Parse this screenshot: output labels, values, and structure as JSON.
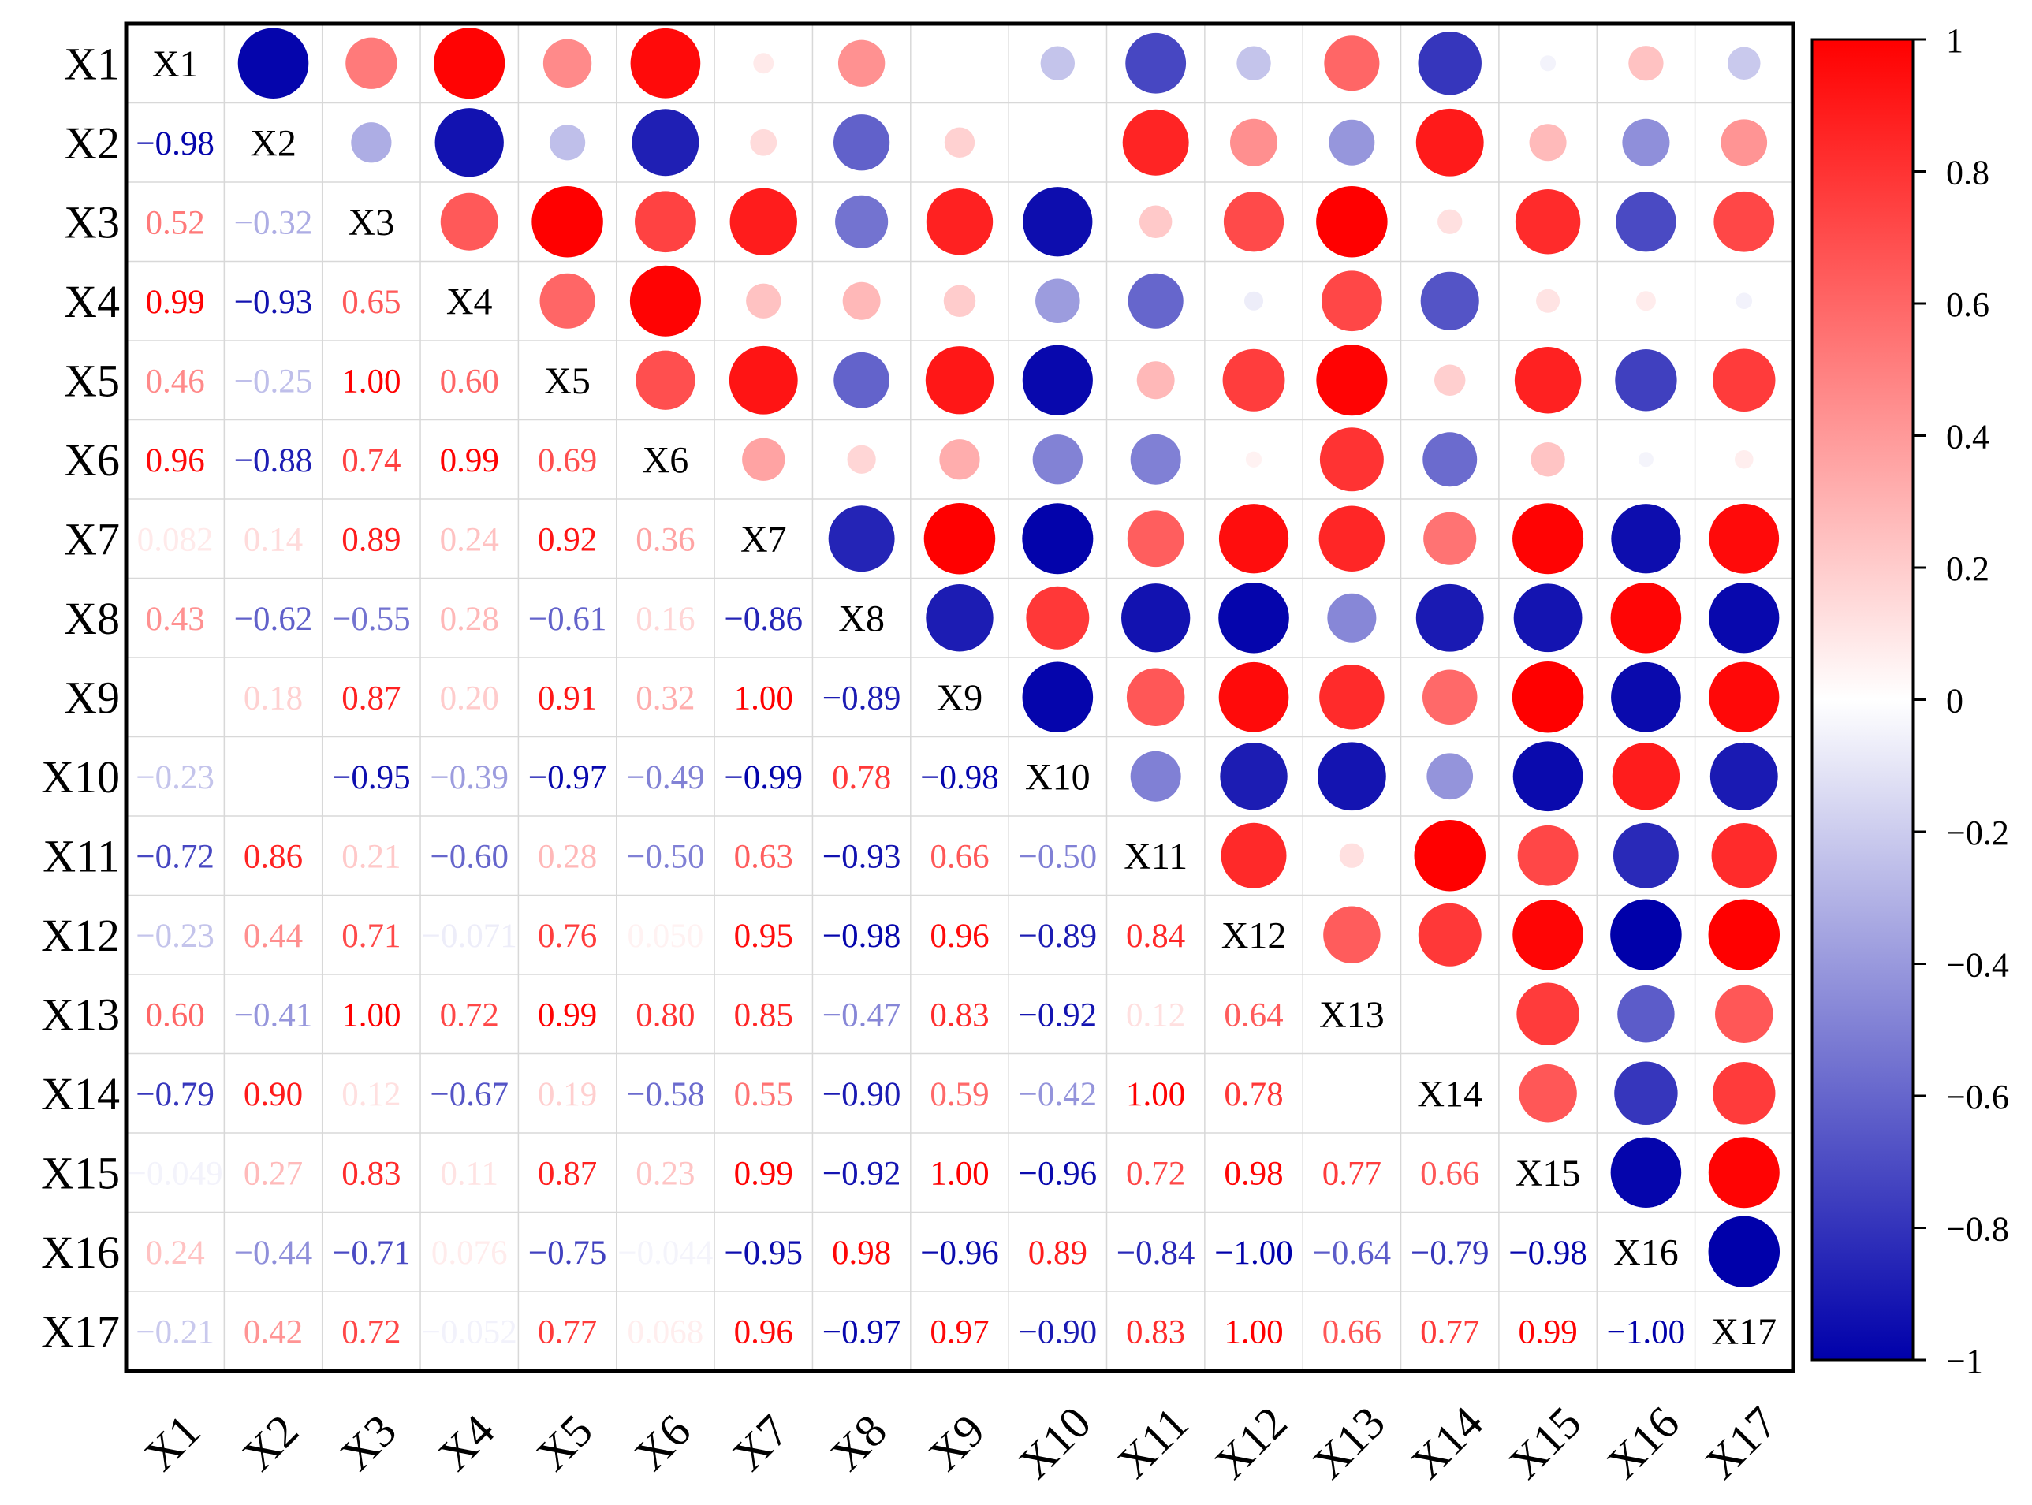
{
  "chart_data": {
    "type": "heatmap",
    "title": "",
    "variables": [
      "X1",
      "X2",
      "X3",
      "X4",
      "X5",
      "X6",
      "X7",
      "X8",
      "X9",
      "X10",
      "X11",
      "X12",
      "X13",
      "X14",
      "X15",
      "X16",
      "X17"
    ],
    "lower_labels": [
      [],
      [
        "−0.98"
      ],
      [
        "0.52",
        "−0.32"
      ],
      [
        "0.99",
        "−0.93",
        "0.65"
      ],
      [
        "0.46",
        "−0.25",
        "1.00",
        "0.60"
      ],
      [
        "0.96",
        "−0.88",
        "0.74",
        "0.99",
        "0.69"
      ],
      [
        "0.082",
        "0.14",
        "0.89",
        "0.24",
        "0.92",
        "0.36"
      ],
      [
        "0.43",
        "−0.62",
        "−0.55",
        "0.28",
        "−0.61",
        "0.16",
        "−0.86"
      ],
      [
        "",
        "0.18",
        "0.87",
        "0.20",
        "0.91",
        "0.32",
        "1.00",
        "−0.89"
      ],
      [
        "−0.23",
        "",
        "−0.95",
        "−0.39",
        "−0.97",
        "−0.49",
        "−0.99",
        "0.78",
        "−0.98"
      ],
      [
        "−0.72",
        "0.86",
        "0.21",
        "−0.60",
        "0.28",
        "−0.50",
        "0.63",
        "−0.93",
        "0.66",
        "−0.50"
      ],
      [
        "−0.23",
        "0.44",
        "0.71",
        "−0.071",
        "0.76",
        "0.050",
        "0.95",
        "−0.98",
        "0.96",
        "−0.89",
        "0.84"
      ],
      [
        "0.60",
        "−0.41",
        "1.00",
        "0.72",
        "0.99",
        "0.80",
        "0.85",
        "−0.47",
        "0.83",
        "−0.92",
        "0.12",
        "0.64"
      ],
      [
        "−0.79",
        "0.90",
        "0.12",
        "−0.67",
        "0.19",
        "−0.58",
        "0.55",
        "−0.90",
        "0.59",
        "−0.42",
        "1.00",
        "0.78",
        ""
      ],
      [
        "−0.049",
        "0.27",
        "0.83",
        "0.11",
        "0.87",
        "0.23",
        "0.99",
        "−0.92",
        "1.00",
        "−0.96",
        "0.72",
        "0.98",
        "0.77",
        "0.66"
      ],
      [
        "0.24",
        "−0.44",
        "−0.71",
        "0.076",
        "−0.75",
        "−0.044",
        "−0.95",
        "0.98",
        "−0.96",
        "0.89",
        "−0.84",
        "−1.00",
        "−0.64",
        "−0.79",
        "−0.98"
      ],
      [
        "−0.21",
        "0.42",
        "0.72",
        "−0.052",
        "0.77",
        "0.068",
        "0.96",
        "−0.97",
        "0.97",
        "−0.90",
        "0.83",
        "1.00",
        "0.66",
        "0.77",
        "0.99",
        "−1.00"
      ]
    ],
    "colorbar": {
      "min": -1,
      "max": 1,
      "ticks": [
        "1",
        "0.8",
        "0.6",
        "0.4",
        "0.2",
        "0",
        "−0.2",
        "−0.4",
        "−0.6",
        "−0.8",
        "−1"
      ]
    },
    "colors": {
      "negative": "#0000aa",
      "zero": "#ffffff",
      "positive": "#ff0000",
      "diagonal_text": "#000000",
      "grid": "#d8d8d8",
      "frame": "#000000"
    },
    "upper_shape": "circle",
    "lower_shape": "number",
    "legend_position": "right",
    "xlabel": "",
    "ylabel": ""
  }
}
